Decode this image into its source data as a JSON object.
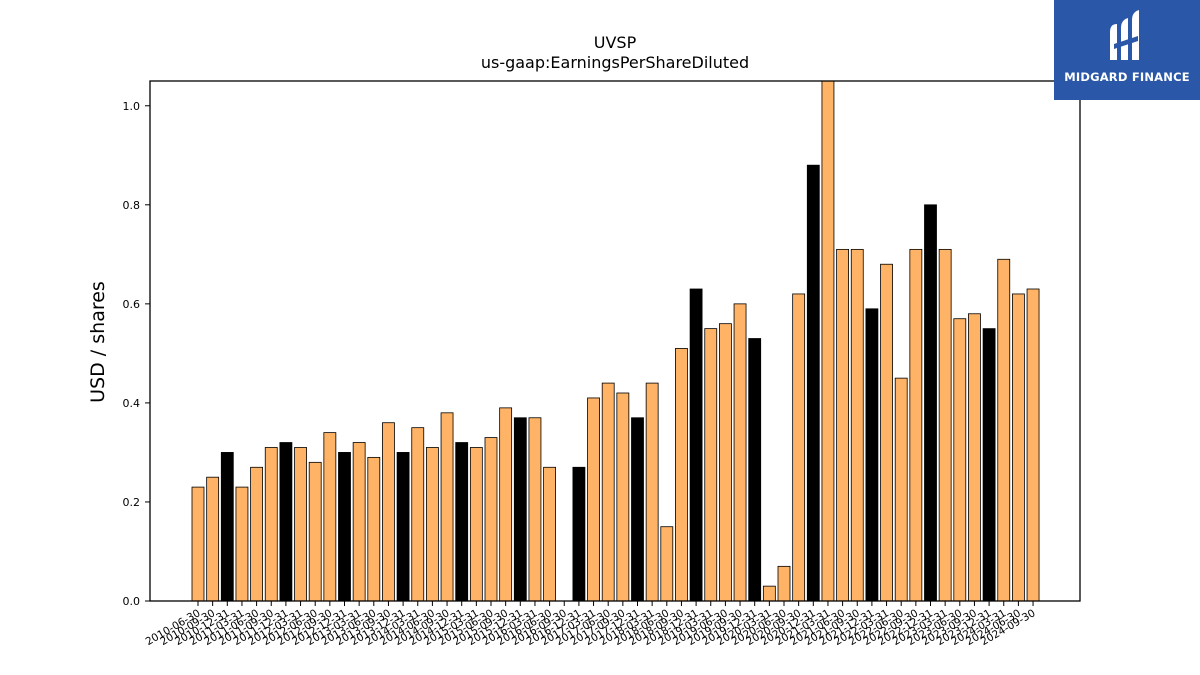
{
  "chart_data": {
    "type": "bar",
    "title": "UVSP",
    "subtitle": "us-gaap:EarningsPerShareDiluted",
    "ylabel": "USD / shares",
    "xlabel": "",
    "ylim": [
      0,
      1.05
    ],
    "yticks": [
      "0.0",
      "0.2",
      "0.4",
      "0.6",
      "0.8",
      "1.0"
    ],
    "grid": false,
    "highlight_color": "#000000",
    "bar_color": "#ffb366",
    "bars": [
      {
        "x": "2010-06-30",
        "y": 0.23,
        "h": false
      },
      {
        "x": "2010-09-30",
        "y": 0.25,
        "h": false
      },
      {
        "x": "2010-12-31",
        "y": 0.3,
        "h": true
      },
      {
        "x": "2011-03-31",
        "y": 0.23,
        "h": false
      },
      {
        "x": "2011-06-30",
        "y": 0.27,
        "h": false
      },
      {
        "x": "2011-09-30",
        "y": 0.31,
        "h": false
      },
      {
        "x": "2011-12-31",
        "y": 0.32,
        "h": true
      },
      {
        "x": "2012-03-31",
        "y": 0.31,
        "h": false
      },
      {
        "x": "2012-06-30",
        "y": 0.28,
        "h": false
      },
      {
        "x": "2012-09-30",
        "y": 0.34,
        "h": false
      },
      {
        "x": "2012-12-31",
        "y": 0.3,
        "h": true
      },
      {
        "x": "2013-03-31",
        "y": 0.32,
        "h": false
      },
      {
        "x": "2013-06-30",
        "y": 0.29,
        "h": false
      },
      {
        "x": "2013-09-30",
        "y": 0.36,
        "h": false
      },
      {
        "x": "2013-12-31",
        "y": 0.3,
        "h": true
      },
      {
        "x": "2014-03-31",
        "y": 0.35,
        "h": false
      },
      {
        "x": "2014-06-30",
        "y": 0.31,
        "h": false
      },
      {
        "x": "2014-09-30",
        "y": 0.38,
        "h": false
      },
      {
        "x": "2014-12-31",
        "y": 0.32,
        "h": true
      },
      {
        "x": "2015-03-31",
        "y": 0.31,
        "h": false
      },
      {
        "x": "2015-06-30",
        "y": 0.33,
        "h": false
      },
      {
        "x": "2015-09-30",
        "y": 0.39,
        "h": false
      },
      {
        "x": "2015-12-31",
        "y": 0.37,
        "h": true
      },
      {
        "x": "2016-03-31",
        "y": 0.37,
        "h": false
      },
      {
        "x": "2016-06-30",
        "y": 0.27,
        "h": false
      },
      {
        "x": "2016-09-30",
        "y": null,
        "h": false
      },
      {
        "x": "2016-12-31",
        "y": 0.27,
        "h": true
      },
      {
        "x": "2017-03-31",
        "y": 0.41,
        "h": false
      },
      {
        "x": "2017-06-30",
        "y": 0.44,
        "h": false
      },
      {
        "x": "2017-09-30",
        "y": 0.42,
        "h": false
      },
      {
        "x": "2017-12-31",
        "y": 0.37,
        "h": true
      },
      {
        "x": "2018-03-31",
        "y": 0.44,
        "h": false
      },
      {
        "x": "2018-06-30",
        "y": 0.15,
        "h": false
      },
      {
        "x": "2018-09-30",
        "y": 0.51,
        "h": false
      },
      {
        "x": "2018-12-31",
        "y": 0.63,
        "h": true
      },
      {
        "x": "2019-03-31",
        "y": 0.55,
        "h": false
      },
      {
        "x": "2019-06-30",
        "y": 0.56,
        "h": false
      },
      {
        "x": "2019-09-30",
        "y": 0.6,
        "h": false
      },
      {
        "x": "2019-12-31",
        "y": 0.53,
        "h": true
      },
      {
        "x": "2020-03-31",
        "y": 0.03,
        "h": false
      },
      {
        "x": "2020-06-30",
        "y": 0.07,
        "h": false
      },
      {
        "x": "2020-09-30",
        "y": 0.62,
        "h": false
      },
      {
        "x": "2020-12-31",
        "y": 0.88,
        "h": true
      },
      {
        "x": "2021-03-31",
        "y": 1.06,
        "h": false
      },
      {
        "x": "2021-06-30",
        "y": 0.71,
        "h": false
      },
      {
        "x": "2021-09-30",
        "y": 0.71,
        "h": false
      },
      {
        "x": "2021-12-31",
        "y": 0.59,
        "h": true
      },
      {
        "x": "2022-03-31",
        "y": 0.68,
        "h": false
      },
      {
        "x": "2022-06-30",
        "y": 0.45,
        "h": false
      },
      {
        "x": "2022-09-30",
        "y": 0.71,
        "h": false
      },
      {
        "x": "2022-12-31",
        "y": 0.8,
        "h": true
      },
      {
        "x": "2023-03-31",
        "y": 0.71,
        "h": false
      },
      {
        "x": "2023-06-30",
        "y": 0.57,
        "h": false
      },
      {
        "x": "2023-09-30",
        "y": 0.58,
        "h": false
      },
      {
        "x": "2023-12-31",
        "y": 0.55,
        "h": true
      },
      {
        "x": "2024-03-31",
        "y": 0.69,
        "h": false
      },
      {
        "x": "2024-06-30",
        "y": 0.62,
        "h": false
      },
      {
        "x": "2024-09-30",
        "y": 0.63,
        "h": false
      }
    ]
  },
  "logo": {
    "text": "MIDGARD FINANCE",
    "color": "#2a57a8"
  }
}
